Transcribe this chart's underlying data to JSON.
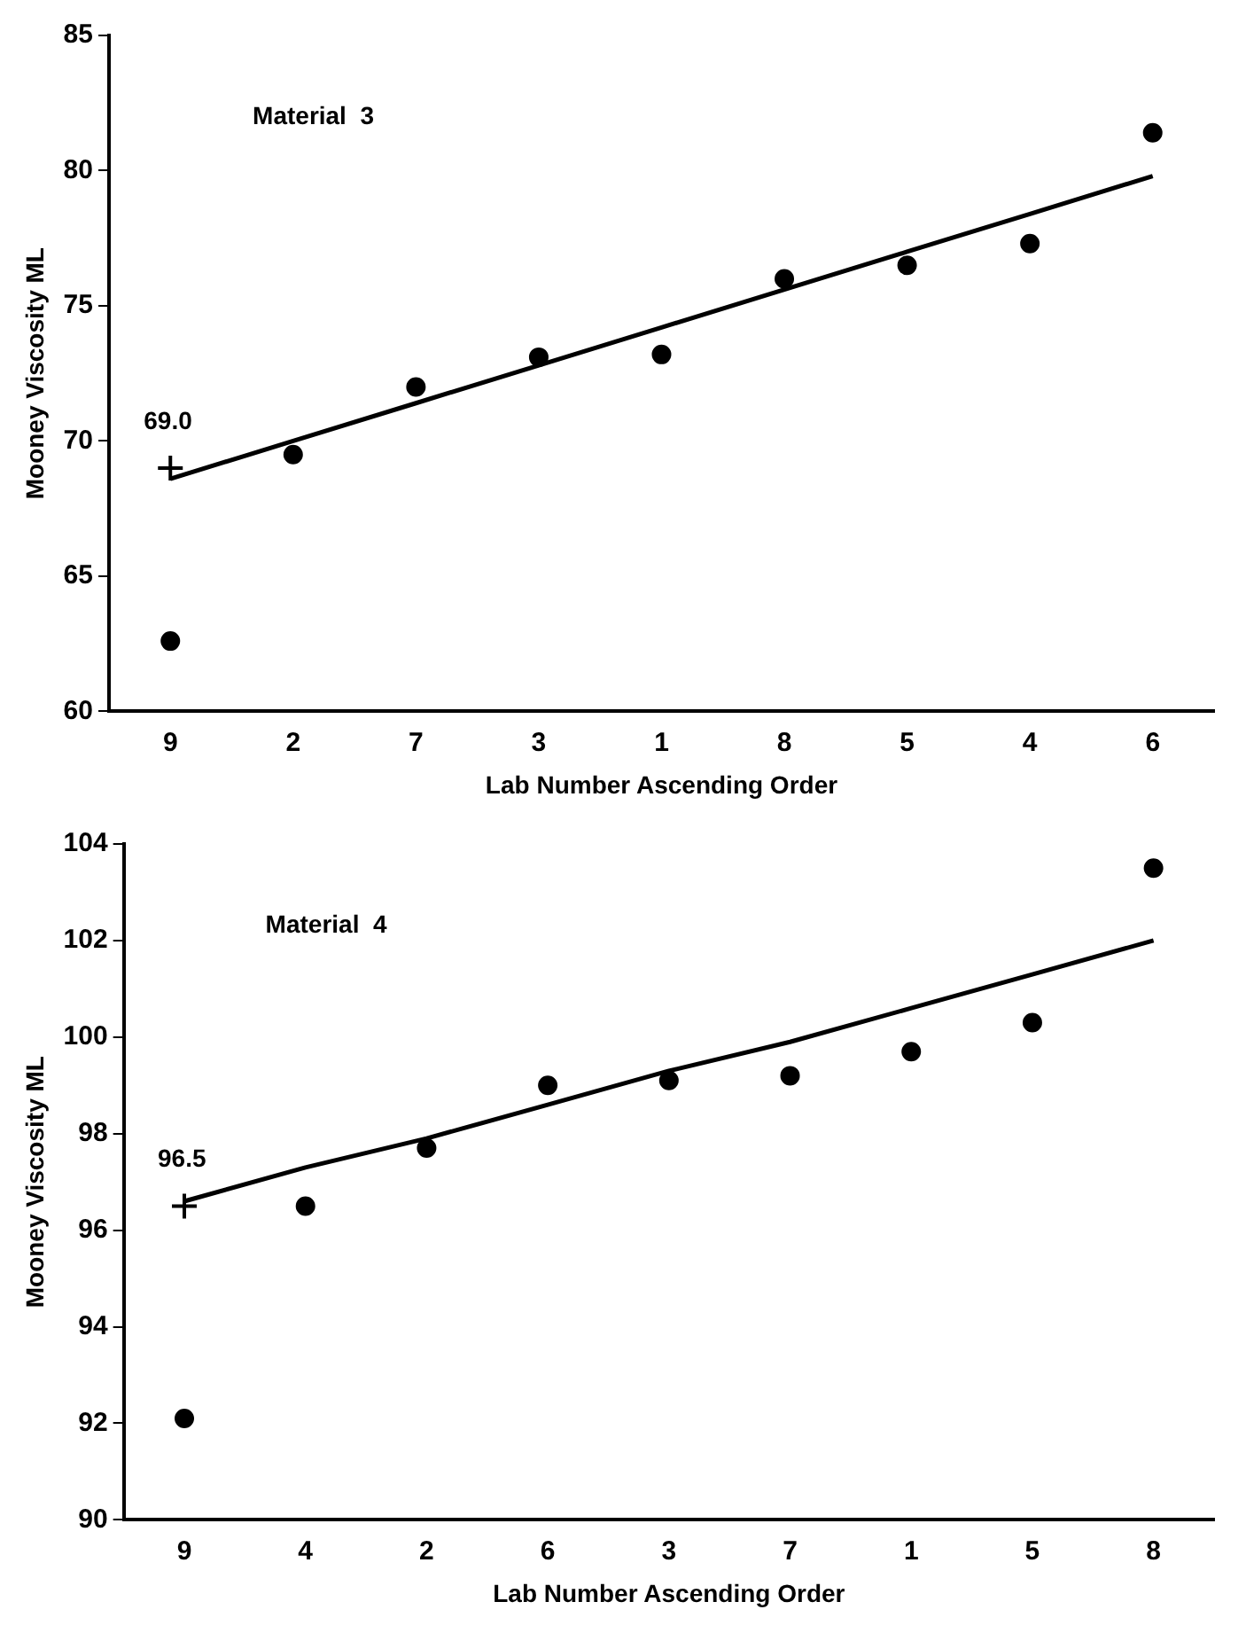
{
  "chart_data": [
    {
      "type": "scatter",
      "xlabel": "Lab Number Ascending Order",
      "ylabel": "Mooney Viscosity ML",
      "categories": [
        "9",
        "2",
        "7",
        "3",
        "1",
        "8",
        "5",
        "4",
        "6"
      ],
      "ylim": [
        60,
        85
      ],
      "yticks": [
        60,
        65,
        70,
        75,
        80,
        85
      ],
      "grid": false,
      "legend": false,
      "annotations": [
        "Material  3",
        {
          "text": "69.0",
          "x": "9",
          "y": 69.0
        }
      ],
      "series": [
        {
          "type": "scatter",
          "marker": "circle",
          "color": "#000000",
          "values": [
            62.6,
            69.5,
            72.0,
            73.1,
            73.2,
            76.0,
            76.5,
            77.3,
            81.4
          ]
        },
        {
          "type": "line",
          "marker": "none",
          "line_style": "solid",
          "color": "#000000",
          "values": [
            68.6,
            70.0,
            71.4,
            72.8,
            74.2,
            75.6,
            77.0,
            78.4,
            79.8
          ]
        },
        {
          "type": "scatter",
          "marker": "cross",
          "color": "#000000",
          "values": [
            69.0,
            null,
            null,
            null,
            null,
            null,
            null,
            null,
            null
          ]
        }
      ]
    },
    {
      "type": "scatter",
      "xlabel": "Lab Number Ascending Order",
      "ylabel": "Mooney Viscosity ML",
      "categories": [
        "9",
        "4",
        "2",
        "6",
        "3",
        "7",
        "1",
        "5",
        "8"
      ],
      "ylim": [
        90,
        104
      ],
      "yticks": [
        90,
        92,
        94,
        96,
        98,
        100,
        102,
        104
      ],
      "grid": false,
      "legend": false,
      "annotations": [
        "Material  4",
        {
          "text": "96.5",
          "x": "9",
          "y": 96.5
        }
      ],
      "series": [
        {
          "type": "scatter",
          "marker": "circle",
          "color": "#000000",
          "values": [
            92.1,
            96.5,
            97.7,
            99.0,
            99.1,
            99.2,
            99.7,
            100.3,
            103.5
          ]
        },
        {
          "type": "line",
          "marker": "none",
          "line_style": "solid",
          "color": "#000000",
          "values": [
            96.6,
            97.3,
            97.9,
            98.6,
            99.3,
            99.9,
            100.6,
            101.3,
            102.0
          ]
        },
        {
          "type": "scatter",
          "marker": "cross",
          "color": "#000000",
          "values": [
            96.5,
            null,
            null,
            null,
            null,
            null,
            null,
            null,
            null
          ]
        }
      ]
    }
  ]
}
